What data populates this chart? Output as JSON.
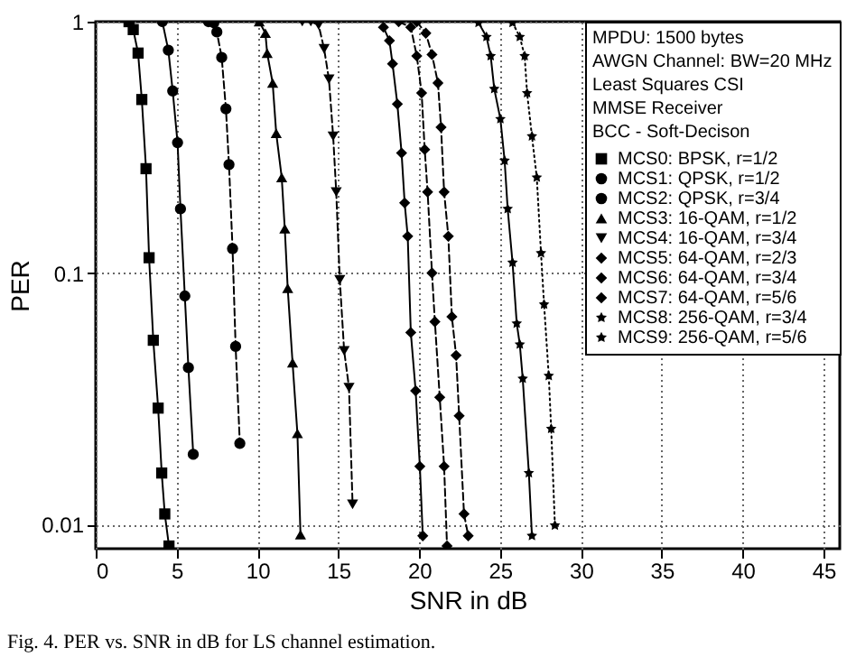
{
  "chart_data": {
    "type": "line",
    "xlabel": "SNR in dB",
    "ylabel": "PER",
    "legend_title": "MPDU: 1500 bytes\nAWGN Channel: BW=20 MHz\nLeast Squares CSI\nMMSE Receiver\nBCC - Soft-Decison",
    "legend": "top right",
    "grid": true,
    "log": "y",
    "xlim": [
      0,
      46
    ],
    "xticks": [
      0,
      5,
      10,
      15,
      20,
      25,
      30,
      35,
      40,
      45
    ],
    "ylim": [
      0.008,
      1
    ],
    "yticks": [
      0.01,
      0.1,
      1
    ],
    "series": [
      {
        "name": "MCS0: BPSK, r=1/2",
        "color": "#000000",
        "marker": "square",
        "line_style": "solid",
        "x": [
          2.06,
          2.32,
          2.62,
          2.85,
          3.11,
          3.3,
          3.56,
          3.86,
          4.08,
          4.27,
          4.53
        ],
        "values": [
          1,
          0.93,
          0.75,
          0.49,
          0.26,
          0.115,
          0.054,
          0.029,
          0.016,
          0.011,
          0.0082
        ]
      },
      {
        "name": "MCS1: QPSK, r=1/2",
        "color": "#000000",
        "marker": "circle",
        "line_style": "solid",
        "x": [
          4.12,
          4.49,
          4.76,
          5.06,
          5.24,
          5.51,
          5.73,
          6.03
        ],
        "values": [
          1,
          0.77,
          0.53,
          0.33,
          0.18,
          0.081,
          0.042,
          0.019
        ]
      },
      {
        "name": "MCS2: QPSK, r=3/4",
        "color": "#000000",
        "marker": "circle",
        "line_style": "dashed",
        "x": [
          6.97,
          7.3,
          7.49,
          7.79,
          8.05,
          8.24,
          8.46,
          8.65,
          8.91
        ],
        "values": [
          1,
          0.99,
          0.91,
          0.72,
          0.45,
          0.27,
          0.125,
          0.051,
          0.021
        ]
      },
      {
        "name": "MCS3: 16-QAM, r=1/2",
        "color": "#000000",
        "marker": "triangle",
        "line_style": "solid",
        "x": [
          10.11,
          10.49,
          10.6,
          10.94,
          11.16,
          11.5,
          11.69,
          11.87,
          12.17,
          12.47,
          12.66
        ],
        "values": [
          1,
          0.9,
          0.75,
          0.57,
          0.36,
          0.24,
          0.15,
          0.087,
          0.044,
          0.023,
          0.0091
        ]
      },
      {
        "name": "MCS4: 16-QAM, r=3/4",
        "color": "#000000",
        "marker": "triangle-down",
        "line_style": "dashed",
        "x": [
          12.77,
          13.3,
          13.78,
          14.12,
          14.42,
          14.68,
          14.87,
          15.09,
          15.36,
          15.66,
          15.88
        ],
        "values": [
          1,
          1,
          0.97,
          0.78,
          0.59,
          0.35,
          0.21,
          0.094,
          0.049,
          0.035,
          0.012
        ]
      },
      {
        "name": "MCS5: 64-QAM, r=2/3",
        "color": "#000000",
        "marker": "diamond",
        "line_style": "solid",
        "x": [
          17.79,
          18.16,
          18.35,
          18.65,
          18.91,
          19.1,
          19.29,
          19.48,
          19.78,
          20.04,
          20.22
        ],
        "values": [
          0.95,
          0.84,
          0.68,
          0.47,
          0.3,
          0.19,
          0.14,
          0.058,
          0.034,
          0.017,
          0.009
        ]
      },
      {
        "name": "MCS6: 64-QAM, r=3/4",
        "color": "#000000",
        "marker": "diamond",
        "line_style": "dashed",
        "x": [
          18.73,
          19.48,
          19.85,
          20.15,
          20.34,
          20.52,
          20.79,
          20.97,
          21.27,
          21.54,
          21.72
        ],
        "values": [
          1,
          0.95,
          0.73,
          0.52,
          0.31,
          0.21,
          0.1,
          0.064,
          0.032,
          0.017,
          0.0082
        ]
      },
      {
        "name": "MCS7: 64-QAM, r=5/6",
        "color": "#000000",
        "marker": "diamond",
        "line_style": "dashed",
        "x": [
          19.85,
          20.41,
          20.79,
          21.16,
          21.35,
          21.54,
          21.8,
          22.02,
          22.28,
          22.47,
          22.77,
          23.03
        ],
        "values": [
          1,
          0.9,
          0.74,
          0.57,
          0.38,
          0.21,
          0.14,
          0.067,
          0.047,
          0.027,
          0.011,
          0.009
        ]
      },
      {
        "name": "MCS8: 256-QAM, r=3/4",
        "color": "#000000",
        "marker": "star",
        "line_style": "solid",
        "x": [
          23.67,
          24.16,
          24.42,
          24.64,
          25.02,
          25.28,
          25.47,
          25.77,
          26.03,
          26.22,
          26.4,
          26.78,
          26.97
        ],
        "values": [
          0.99,
          0.87,
          0.73,
          0.54,
          0.41,
          0.28,
          0.18,
          0.11,
          0.063,
          0.052,
          0.038,
          0.016,
          0.009
        ]
      },
      {
        "name": "MCS9: 256-QAM, r=5/6",
        "color": "#000000",
        "marker": "star",
        "line_style": "dotted",
        "x": [
          25.77,
          26.22,
          26.52,
          26.67,
          26.97,
          27.27,
          27.53,
          27.72,
          28.01,
          28.16,
          28.39
        ],
        "values": [
          0.99,
          0.87,
          0.73,
          0.52,
          0.35,
          0.24,
          0.12,
          0.075,
          0.039,
          0.024,
          0.0099
        ]
      }
    ],
    "annotations": [
      "Fig. 4. PER vs. SNR in dB for LS channel estimation."
    ]
  }
}
